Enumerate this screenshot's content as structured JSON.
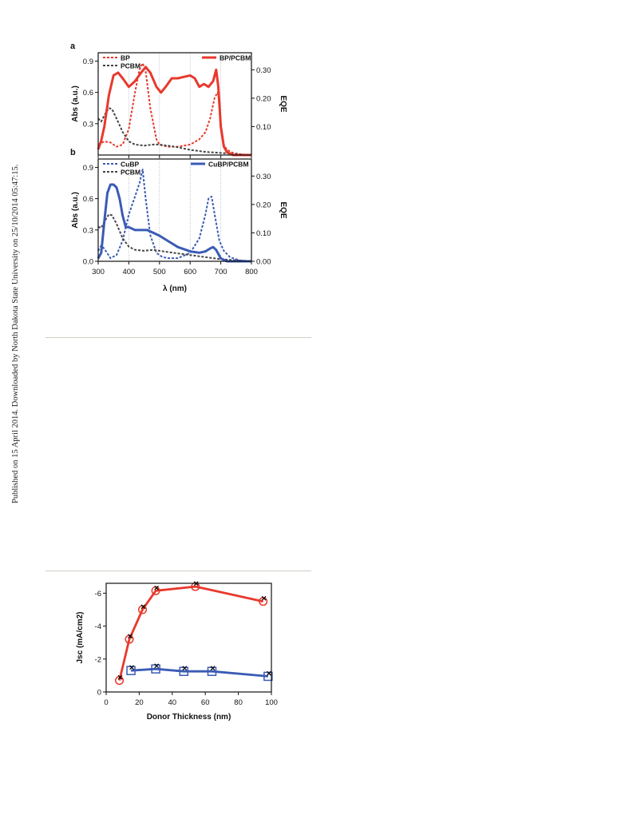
{
  "side_note": "Published on 15 April 2014. Downloaded by North Dakota State University on 25/10/2014 05:47:15.",
  "chart_data": [
    {
      "type": "line",
      "panel_label": "a",
      "ylabel": "Abs (a.u.)",
      "y2label": "EQE",
      "xlim": [
        300,
        800
      ],
      "ylim": [
        0,
        0.98
      ],
      "y2lim": [
        0,
        0.36
      ],
      "yticks": [
        "0.9",
        "0.6",
        "0.3"
      ],
      "y2ticks": [
        "0.30",
        "0.20",
        "0.10"
      ],
      "legend": [
        "BP",
        "PCBM",
        "BP/PCBM"
      ],
      "colors": {
        "BP": "#e8392c",
        "PCBM": "#444444",
        "BP/PCBM": "#e8392c"
      },
      "series": [
        {
          "name": "BP",
          "style": "dashed",
          "axis": "left",
          "x": [
            300,
            320,
            340,
            360,
            380,
            400,
            420,
            435,
            445,
            455,
            470,
            490,
            500,
            510,
            530,
            560,
            600,
            630,
            650,
            665,
            680,
            690,
            695,
            700,
            710,
            720,
            740,
            760,
            780,
            800
          ],
          "y": [
            0.1,
            0.13,
            0.12,
            0.08,
            0.1,
            0.25,
            0.6,
            0.82,
            0.88,
            0.8,
            0.45,
            0.15,
            0.1,
            0.09,
            0.08,
            0.08,
            0.1,
            0.15,
            0.22,
            0.35,
            0.55,
            0.6,
            0.5,
            0.3,
            0.1,
            0.05,
            0.02,
            0.01,
            0.0,
            0.0
          ]
        },
        {
          "name": "PCBM",
          "style": "dashed",
          "axis": "left",
          "x": [
            300,
            310,
            320,
            335,
            345,
            360,
            380,
            400,
            420,
            450,
            480,
            500,
            550,
            600,
            650,
            700,
            750,
            800
          ],
          "y": [
            0.35,
            0.32,
            0.38,
            0.45,
            0.44,
            0.35,
            0.22,
            0.13,
            0.1,
            0.09,
            0.1,
            0.1,
            0.08,
            0.05,
            0.03,
            0.02,
            0.01,
            0.0
          ]
        },
        {
          "name": "BP/PCBM",
          "style": "solid",
          "axis": "right",
          "x": [
            300,
            310,
            320,
            335,
            350,
            365,
            380,
            400,
            420,
            440,
            455,
            470,
            490,
            505,
            520,
            540,
            560,
            580,
            600,
            615,
            630,
            645,
            660,
            675,
            685,
            692,
            700,
            710,
            720,
            740,
            760,
            780,
            800
          ],
          "y": [
            0.02,
            0.05,
            0.1,
            0.21,
            0.28,
            0.29,
            0.27,
            0.24,
            0.26,
            0.29,
            0.31,
            0.29,
            0.24,
            0.22,
            0.24,
            0.27,
            0.27,
            0.275,
            0.28,
            0.27,
            0.24,
            0.25,
            0.24,
            0.26,
            0.3,
            0.24,
            0.1,
            0.03,
            0.01,
            0.0,
            0.0,
            0.0,
            0.0
          ]
        }
      ]
    },
    {
      "type": "line",
      "panel_label": "b",
      "xlabel": "λ (nm)",
      "ylabel": "Abs (a.u.)",
      "y2label": "EQE",
      "xlim": [
        300,
        800
      ],
      "ylim": [
        0,
        0.98
      ],
      "y2lim": [
        0,
        0.36
      ],
      "xticks": [
        "300",
        "400",
        "500",
        "600",
        "700",
        "800"
      ],
      "yticks": [
        "0.9",
        "0.6",
        "0.3",
        "0.0"
      ],
      "y2ticks": [
        "0.30",
        "0.20",
        "0.10",
        "0.00"
      ],
      "legend": [
        "CuBP",
        "PCBM",
        "CuBP/PCBM"
      ],
      "colors": {
        "CuBP": "#3a5bb5",
        "PCBM": "#444444",
        "CuBP/PCBM": "#3a5bb5"
      },
      "series": [
        {
          "name": "CuBP",
          "style": "dashed",
          "axis": "left",
          "x": [
            300,
            310,
            320,
            340,
            360,
            380,
            400,
            420,
            435,
            445,
            455,
            470,
            490,
            510,
            530,
            560,
            600,
            630,
            650,
            660,
            670,
            680,
            695,
            710,
            730,
            760,
            800
          ],
          "y": [
            0.1,
            0.15,
            0.12,
            0.03,
            0.06,
            0.2,
            0.45,
            0.62,
            0.75,
            0.88,
            0.6,
            0.25,
            0.08,
            0.04,
            0.03,
            0.03,
            0.08,
            0.22,
            0.45,
            0.6,
            0.62,
            0.45,
            0.2,
            0.1,
            0.04,
            0.01,
            0.0
          ]
        },
        {
          "name": "PCBM",
          "style": "dashed",
          "axis": "left",
          "x": [
            300,
            310,
            320,
            335,
            345,
            360,
            380,
            400,
            420,
            450,
            480,
            500,
            550,
            600,
            650,
            700,
            750,
            800
          ],
          "y": [
            0.33,
            0.32,
            0.38,
            0.45,
            0.44,
            0.36,
            0.22,
            0.14,
            0.11,
            0.1,
            0.11,
            0.1,
            0.08,
            0.06,
            0.04,
            0.02,
            0.01,
            0.0
          ]
        },
        {
          "name": "CuBP/PCBM",
          "style": "solid",
          "axis": "right",
          "x": [
            300,
            310,
            320,
            330,
            340,
            350,
            360,
            370,
            380,
            390,
            400,
            420,
            440,
            460,
            480,
            500,
            530,
            560,
            600,
            630,
            650,
            665,
            675,
            685,
            700,
            720,
            750,
            800
          ],
          "y": [
            0.01,
            0.03,
            0.14,
            0.24,
            0.27,
            0.27,
            0.26,
            0.22,
            0.16,
            0.12,
            0.12,
            0.11,
            0.11,
            0.11,
            0.1,
            0.09,
            0.07,
            0.05,
            0.035,
            0.03,
            0.035,
            0.045,
            0.05,
            0.04,
            0.01,
            0.0,
            0.0,
            0.0
          ]
        }
      ]
    },
    {
      "type": "line",
      "xlabel": "Donor Thickness (nm)",
      "ylabel": "Jsc (mA/cm2)",
      "xlim": [
        0,
        100
      ],
      "ylim": [
        0,
        -6.6
      ],
      "xticks": [
        "0",
        "20",
        "40",
        "60",
        "80",
        "100"
      ],
      "yticks": [
        "-6",
        "-4",
        "-2",
        "0"
      ],
      "colors": {
        "red": "#e8392c",
        "blue": "#3a5bb5"
      },
      "series": [
        {
          "marker": "circle",
          "color": "red",
          "x": [
            8,
            14,
            22,
            30,
            54,
            95
          ],
          "y": [
            -0.7,
            -3.2,
            -5.0,
            -6.15,
            -6.4,
            -5.5
          ]
        },
        {
          "marker": "square",
          "color": "blue",
          "x": [
            15,
            30,
            47,
            64,
            98
          ],
          "y": [
            -1.3,
            -1.4,
            -1.25,
            -1.25,
            -0.95
          ]
        }
      ]
    }
  ]
}
